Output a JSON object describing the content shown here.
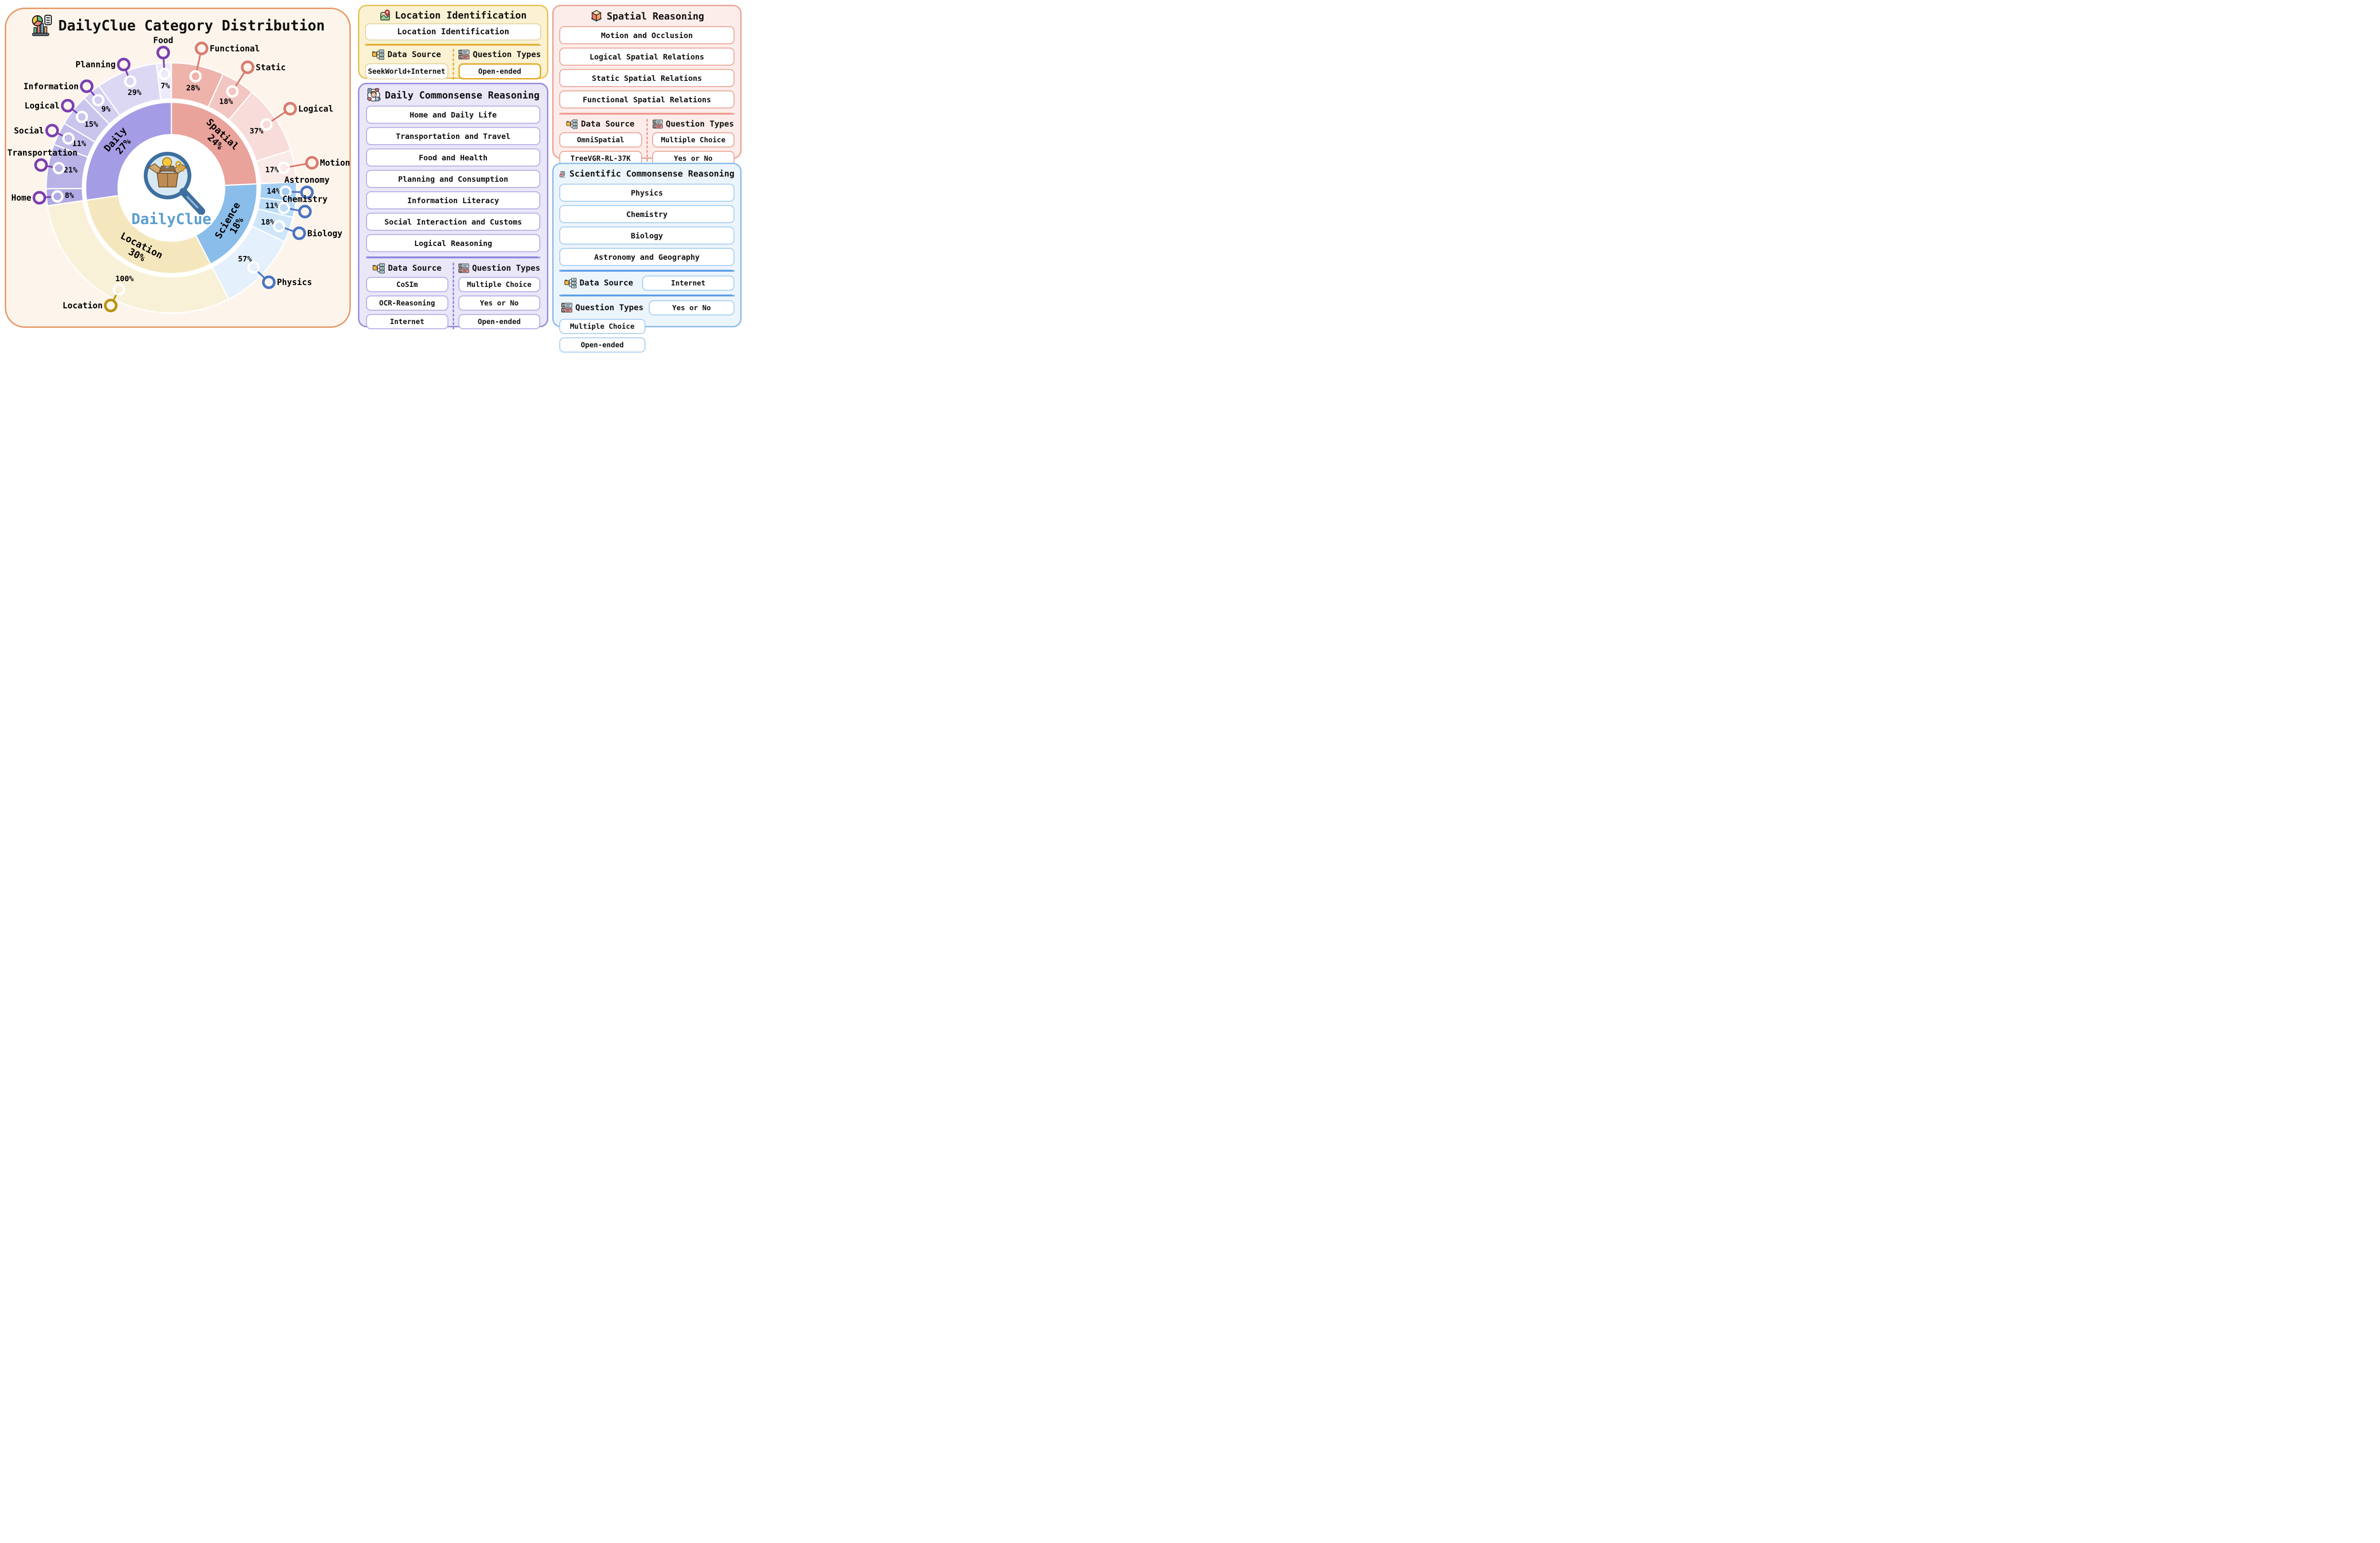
{
  "chart_data": {
    "type": "sunburst",
    "title": "DailyClue Category Distribution",
    "center_label": "DailyClue",
    "unit": "percent",
    "legend_position": "none",
    "grid": false,
    "groups": [
      {
        "name": "Spatial",
        "pct": 24,
        "color": "#e9a39b",
        "marker": "#d97c70",
        "children": [
          {
            "name": "Functional",
            "pct": 28,
            "color": "#eeb3ab"
          },
          {
            "name": "Static",
            "pct": 18,
            "color": "#f3c7c1"
          },
          {
            "name": "Logical",
            "pct": 37,
            "color": "#f8dcd9"
          },
          {
            "name": "Motion",
            "pct": 17,
            "color": "#fbebe8"
          }
        ]
      },
      {
        "name": "Science",
        "pct": 18,
        "color": "#8abde9",
        "marker": "#4a74c4",
        "children": [
          {
            "name": "Astronomy",
            "pct": 14,
            "color": "#a5cef3"
          },
          {
            "name": "Chemistry",
            "pct": 11,
            "color": "#badbf6"
          },
          {
            "name": "Biology",
            "pct": 18,
            "color": "#cfe6fa"
          },
          {
            "name": "Physics",
            "pct": 57,
            "color": "#e4f0fc"
          }
        ]
      },
      {
        "name": "Location",
        "pct": 30,
        "color": "#f5e7bd",
        "marker": "#b8930e",
        "children": [
          {
            "name": "Location",
            "pct": 100,
            "color": "#f9f1d7"
          }
        ]
      },
      {
        "name": "Daily",
        "pct": 27,
        "color": "#a49ce4",
        "marker": "#7b3fb0",
        "children": [
          {
            "name": "Home",
            "pct": 8,
            "color": "#b1a9e3"
          },
          {
            "name": "Transportation",
            "pct": 21,
            "color": "#b9b2e7"
          },
          {
            "name": "Social",
            "pct": 11,
            "color": "#c2bcea"
          },
          {
            "name": "Logical",
            "pct": 15,
            "color": "#cac5ed"
          },
          {
            "name": "Information",
            "pct": 9,
            "color": "#d3cff0"
          },
          {
            "name": "Planning",
            "pct": 29,
            "color": "#dcd8f4"
          },
          {
            "name": "Food",
            "pct": 7,
            "color": "#edebfa"
          }
        ]
      }
    ]
  },
  "panels": {
    "location": {
      "title": "Location Identification",
      "task": "Location Identification",
      "data_source_label": "Data Source",
      "question_types_label": "Question Types",
      "data_sources": [
        "SeekWorld+Internet"
      ],
      "question_types": [
        "Open-ended"
      ]
    },
    "daily": {
      "title": "Daily Commonsense Reasoning",
      "items": [
        "Home and Daily Life",
        "Transportation and Travel",
        "Food and Health",
        "Planning and Consumption",
        "Information Literacy",
        "Social Interaction and Customs",
        "Logical Reasoning"
      ],
      "data_source_label": "Data Source",
      "question_types_label": "Question Types",
      "data_sources": [
        "CoSIm",
        "OCR-Reasoning",
        "Internet"
      ],
      "question_types": [
        "Multiple Choice",
        "Yes or No",
        "Open-ended"
      ]
    },
    "spatial": {
      "title": "Spatial Reasoning",
      "items": [
        "Motion and Occlusion",
        "Logical Spatial Relations",
        "Static Spatial Relations",
        "Functional Spatial Relations"
      ],
      "data_source_label": "Data Source",
      "question_types_label": "Question Types",
      "data_sources": [
        "OmniSpatial",
        "TreeVGR-RL-37K"
      ],
      "question_types": [
        "Multiple Choice",
        "Yes or No"
      ]
    },
    "scientific": {
      "title": "Scientific Commonsense Reasoning",
      "items": [
        "Physics",
        "Chemistry",
        "Biology",
        "Astronomy and Geography"
      ],
      "data_source_label": "Data Source",
      "question_types_label": "Question Types",
      "data_sources": [
        "Internet"
      ],
      "question_types_row1": [
        "Yes or No"
      ],
      "question_types_row2": [
        "Multiple Choice",
        "Open-ended"
      ]
    }
  }
}
